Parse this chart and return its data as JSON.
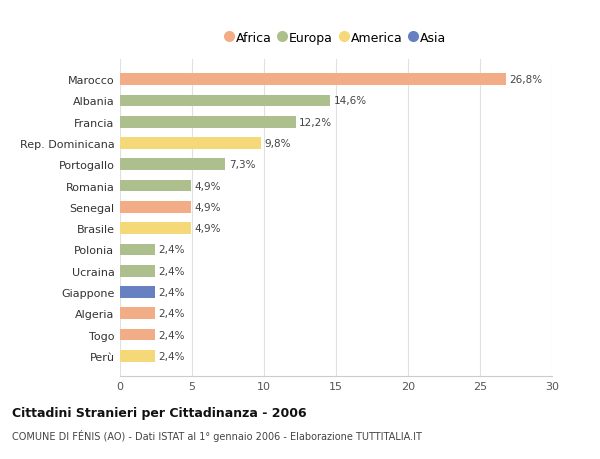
{
  "countries": [
    "Marocco",
    "Albania",
    "Francia",
    "Rep. Dominicana",
    "Portogallo",
    "Romania",
    "Senegal",
    "Brasile",
    "Polonia",
    "Ucraina",
    "Giappone",
    "Algeria",
    "Togo",
    "Perù"
  ],
  "values": [
    26.8,
    14.6,
    12.2,
    9.8,
    7.3,
    4.9,
    4.9,
    4.9,
    2.4,
    2.4,
    2.4,
    2.4,
    2.4,
    2.4
  ],
  "labels": [
    "26,8%",
    "14,6%",
    "12,2%",
    "9,8%",
    "7,3%",
    "4,9%",
    "4,9%",
    "4,9%",
    "2,4%",
    "2,4%",
    "2,4%",
    "2,4%",
    "2,4%",
    "2,4%"
  ],
  "continents": [
    "Africa",
    "Europa",
    "Europa",
    "America",
    "Europa",
    "Europa",
    "Africa",
    "America",
    "Europa",
    "Europa",
    "Asia",
    "Africa",
    "Africa",
    "America"
  ],
  "colors": {
    "Africa": "#F2AC86",
    "Europa": "#ADBF8C",
    "America": "#F5D878",
    "Asia": "#6680C2"
  },
  "title": "Cittadini Stranieri per Cittadinanza - 2006",
  "subtitle": "COMUNE DI FÉNIS (AO) - Dati ISTAT al 1° gennaio 2006 - Elaborazione TUTTITALIA.IT",
  "xlim": [
    0,
    30
  ],
  "xticks": [
    0,
    5,
    10,
    15,
    20,
    25,
    30
  ],
  "background_color": "#ffffff",
  "grid_color": "#e0e0e0",
  "bar_height": 0.55
}
